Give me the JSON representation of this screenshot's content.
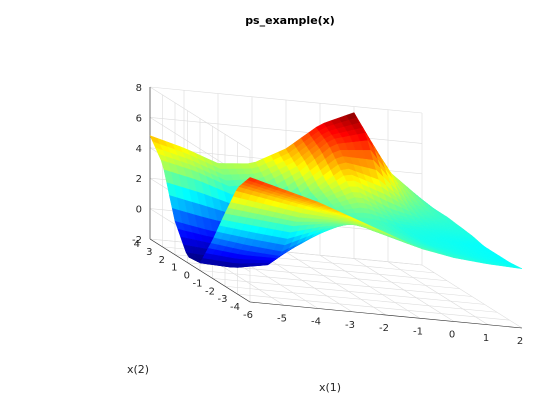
{
  "chart_data": {
    "type": "surface",
    "title": "ps_example(x)",
    "xlabel": "x(1)",
    "ylabel": "x(2)",
    "zlabel": "",
    "xlim": [
      -6,
      2
    ],
    "ylim": [
      -4,
      4
    ],
    "zlim": [
      -2,
      8
    ],
    "x_ticks": [
      "-6",
      "-5",
      "-4",
      "-3",
      "-2",
      "-1",
      "0",
      "1",
      "2"
    ],
    "y_ticks": [
      "-4",
      "-3",
      "-2",
      "-1",
      "0",
      "1",
      "2",
      "3",
      "4"
    ],
    "z_ticks": [
      "-2",
      "0",
      "2",
      "4",
      "6",
      "8"
    ],
    "colormap": "jet",
    "grid": true,
    "surface": {
      "x": [
        -6,
        -5,
        -4,
        -3,
        -2,
        -1,
        0,
        1,
        2
      ],
      "y": [
        -4,
        -3,
        -2,
        -1,
        0,
        1,
        2,
        3,
        4
      ],
      "z": [
        [
          6.2,
          5.6,
          5.0,
          4.2,
          3.4,
          2.6,
          2.2,
          2.0,
          1.9
        ],
        [
          5.0,
          4.6,
          4.2,
          3.8,
          3.0,
          2.4,
          2.1,
          1.9,
          1.8
        ],
        [
          2.8,
          2.6,
          2.4,
          2.8,
          2.9,
          2.4,
          2.0,
          1.9,
          1.8
        ],
        [
          0.5,
          0.2,
          0.0,
          1.4,
          2.6,
          2.4,
          2.0,
          1.9,
          1.8
        ],
        [
          -1.5,
          -1.6,
          -1.2,
          0.6,
          2.4,
          2.5,
          2.1,
          2.0,
          2.0
        ],
        [
          -1.6,
          -1.7,
          -1.3,
          0.4,
          2.6,
          3.6,
          2.6,
          2.2,
          2.1
        ],
        [
          0.2,
          -0.2,
          -0.4,
          0.8,
          3.0,
          4.8,
          4.2,
          2.6,
          2.2
        ],
        [
          3.5,
          3.0,
          2.2,
          2.6,
          4.0,
          6.0,
          6.6,
          3.4,
          2.2
        ],
        [
          4.8,
          4.2,
          3.4,
          3.6,
          4.8,
          6.6,
          7.6,
          4.0,
          2.3
        ]
      ]
    }
  }
}
